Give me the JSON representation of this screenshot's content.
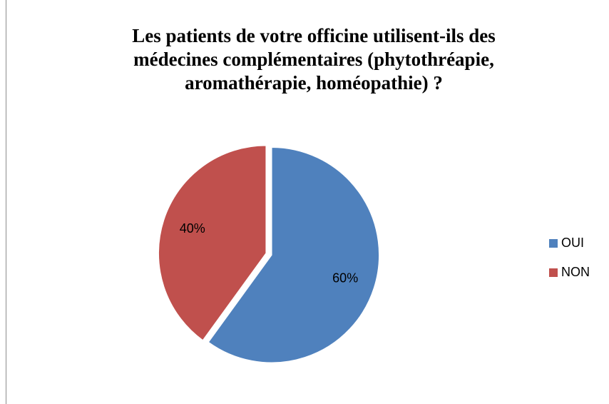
{
  "chart_data": {
    "type": "pie",
    "title": "Les patients de votre officine utilisent-ils des médecines complémentaires (phytothréapie, aromathérapie, homéopathie) ?",
    "categories": [
      "OUI",
      "NON"
    ],
    "values": [
      60,
      40
    ],
    "value_labels": [
      "60%",
      "40%"
    ],
    "colors": [
      "#4f81bd",
      "#c0504d"
    ],
    "legend": "right"
  }
}
